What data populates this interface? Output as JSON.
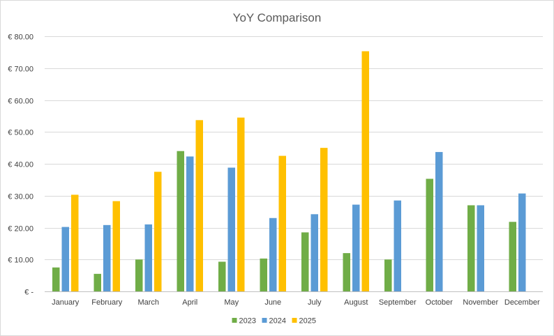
{
  "chart_data": {
    "type": "bar",
    "title": "YoY Comparison",
    "xlabel": "",
    "ylabel": "",
    "categories": [
      "January",
      "February",
      "March",
      "April",
      "May",
      "June",
      "July",
      "August",
      "September",
      "October",
      "November",
      "December"
    ],
    "series": [
      {
        "name": "2023",
        "color": "#70AD47",
        "values": [
          7.5,
          5.5,
          10.0,
          44.0,
          9.3,
          10.3,
          18.5,
          12.0,
          10.0,
          35.3,
          27.0,
          21.8
        ]
      },
      {
        "name": "2024",
        "color": "#5B9BD5",
        "values": [
          20.2,
          20.8,
          21.0,
          42.3,
          38.8,
          23.0,
          24.2,
          27.2,
          28.5,
          43.7,
          27.0,
          30.7
        ]
      },
      {
        "name": "2025",
        "color": "#FFC000",
        "values": [
          30.3,
          28.3,
          37.5,
          53.7,
          54.5,
          42.5,
          45.0,
          75.3,
          null,
          null,
          null,
          null
        ]
      }
    ],
    "ylim": [
      0,
      80
    ],
    "yticks": [
      0,
      10,
      20,
      30,
      40,
      50,
      60,
      70,
      80
    ],
    "ytick_labels": [
      "€ -",
      "€ 10.00",
      "€ 20.00",
      "€ 30.00",
      "€ 40.00",
      "€ 50.00",
      "€ 60.00",
      "€ 70.00",
      "€ 80.00"
    ],
    "grid": true,
    "legend_position": "bottom"
  }
}
